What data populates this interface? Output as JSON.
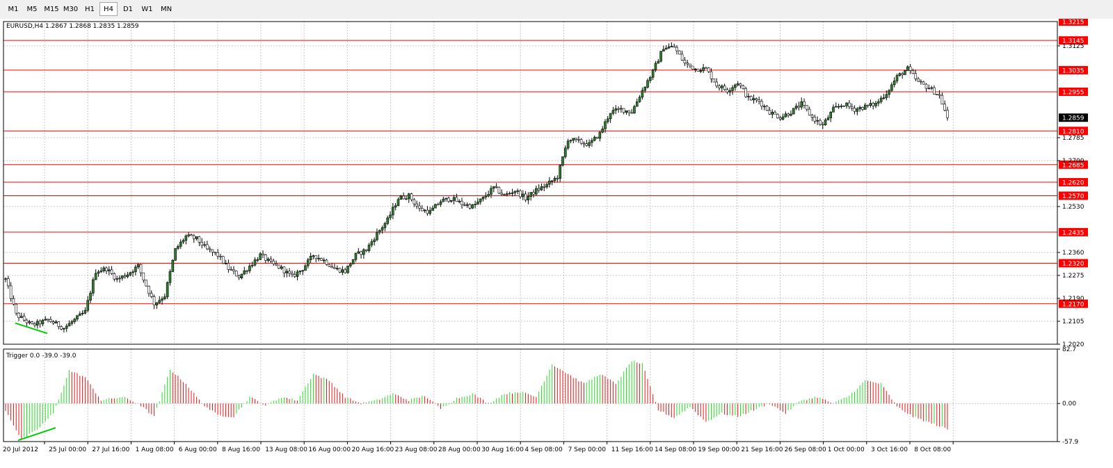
{
  "toolbar": {
    "timeframes": [
      "M1",
      "M5",
      "M15",
      "M30",
      "H1",
      "H4",
      "D1",
      "W1",
      "MN"
    ],
    "active": "H4"
  },
  "symbol_header": "EURUSD,H4  1.2867 1.2868 1.2835 1.2859",
  "current_price_label": "1.2859",
  "indicator_header": "Trigger 0.0 -39.0 -39.0",
  "colors": {
    "background": "#ffffff",
    "grid": "#c8c8c8",
    "level_line": "#ff0000",
    "level_label_bg": "#ff0000",
    "bull_candle": "#2f7d2f",
    "bear_candle": "#000000",
    "hist_positive": "#22dd22",
    "hist_negative": "#ee1111",
    "trend_line": "#00cc00",
    "price_box_bg": "#000000"
  },
  "chart_data": [
    {
      "type": "candlestick",
      "price_axis_ticks": [
        "1.3125",
        "1.2785",
        "1.2700",
        "1.2530",
        "1.2360",
        "1.2275",
        "1.2190",
        "1.2105",
        "1.2020"
      ],
      "ylim": [
        1.202,
        1.3215
      ],
      "resistance_levels": [
        "1.3215",
        "1.3145",
        "1.3035",
        "1.2955",
        "1.2810",
        "1.2685",
        "1.2620",
        "1.2570",
        "1.2435",
        "1.2320",
        "1.2170"
      ],
      "time_labels": [
        "20 Jul 2012",
        "25 Jul 00:00",
        "27 Jul 16:00",
        "1 Aug 08:00",
        "6 Aug 00:00",
        "8 Aug 16:00",
        "13 Aug 08:00",
        "16 Aug 00:00",
        "20 Aug 16:00",
        "23 Aug 08:00",
        "28 Aug 00:00",
        "30 Aug 16:00",
        "4 Sep 08:00",
        "7 Sep 00:00",
        "11 Sep 16:00",
        "14 Sep 08:00",
        "19 Sep 00:00",
        "21 Sep 16:00",
        "26 Sep 08:00",
        "1 Oct 00:00",
        "3 Oct 16:00",
        "8 Oct 08:00"
      ],
      "last_close": 1.2859,
      "path_keypoints": [
        [
          0,
          1.226
        ],
        [
          4,
          1.213
        ],
        [
          10,
          1.209
        ],
        [
          16,
          1.211
        ],
        [
          22,
          1.208
        ],
        [
          26,
          1.211
        ],
        [
          30,
          1.214
        ],
        [
          34,
          1.229
        ],
        [
          38,
          1.23
        ],
        [
          42,
          1.226
        ],
        [
          46,
          1.228
        ],
        [
          50,
          1.231
        ],
        [
          52,
          1.226
        ],
        [
          56,
          1.217
        ],
        [
          60,
          1.22
        ],
        [
          64,
          1.237
        ],
        [
          68,
          1.242
        ],
        [
          72,
          1.241
        ],
        [
          76,
          1.237
        ],
        [
          80,
          1.235
        ],
        [
          84,
          1.23
        ],
        [
          88,
          1.227
        ],
        [
          92,
          1.231
        ],
        [
          96,
          1.235
        ],
        [
          100,
          1.232
        ],
        [
          104,
          1.23
        ],
        [
          108,
          1.227
        ],
        [
          112,
          1.23
        ],
        [
          116,
          1.235
        ],
        [
          120,
          1.233
        ],
        [
          124,
          1.23
        ],
        [
          128,
          1.229
        ],
        [
          132,
          1.235
        ],
        [
          136,
          1.237
        ],
        [
          140,
          1.243
        ],
        [
          144,
          1.248
        ],
        [
          148,
          1.256
        ],
        [
          152,
          1.257
        ],
        [
          156,
          1.252
        ],
        [
          160,
          1.251
        ],
        [
          164,
          1.255
        ],
        [
          168,
          1.256
        ],
        [
          172,
          1.254
        ],
        [
          176,
          1.253
        ],
        [
          180,
          1.256
        ],
        [
          184,
          1.26
        ],
        [
          188,
          1.257
        ],
        [
          192,
          1.259
        ],
        [
          196,
          1.256
        ],
        [
          200,
          1.259
        ],
        [
          204,
          1.261
        ],
        [
          208,
          1.264
        ],
        [
          212,
          1.278
        ],
        [
          216,
          1.277
        ],
        [
          220,
          1.276
        ],
        [
          224,
          1.28
        ],
        [
          228,
          1.288
        ],
        [
          232,
          1.289
        ],
        [
          236,
          1.288
        ],
        [
          240,
          1.296
        ],
        [
          244,
          1.303
        ],
        [
          248,
          1.312
        ],
        [
          252,
          1.312
        ],
        [
          256,
          1.306
        ],
        [
          260,
          1.304
        ],
        [
          264,
          1.304
        ],
        [
          268,
          1.298
        ],
        [
          272,
          1.296
        ],
        [
          276,
          1.299
        ],
        [
          280,
          1.293
        ],
        [
          284,
          1.292
        ],
        [
          288,
          1.288
        ],
        [
          292,
          1.286
        ],
        [
          296,
          1.288
        ],
        [
          300,
          1.291
        ],
        [
          304,
          1.286
        ],
        [
          308,
          1.283
        ],
        [
          312,
          1.289
        ],
        [
          316,
          1.291
        ],
        [
          320,
          1.289
        ],
        [
          324,
          1.29
        ],
        [
          328,
          1.291
        ],
        [
          332,
          1.295
        ],
        [
          336,
          1.301
        ],
        [
          340,
          1.304
        ],
        [
          344,
          1.299
        ],
        [
          348,
          1.297
        ],
        [
          352,
          1.294
        ],
        [
          355,
          1.2859
        ]
      ]
    },
    {
      "type": "histogram",
      "title": "Trigger",
      "ylim": [
        -57.9,
        82.7
      ],
      "y_axis_ticks": [
        "82.7",
        "0.00",
        "-57.9"
      ],
      "keypoints": [
        [
          0,
          -10
        ],
        [
          6,
          -55
        ],
        [
          12,
          -40
        ],
        [
          18,
          -15
        ],
        [
          24,
          50
        ],
        [
          30,
          40
        ],
        [
          36,
          5
        ],
        [
          44,
          10
        ],
        [
          50,
          0
        ],
        [
          56,
          -20
        ],
        [
          62,
          52
        ],
        [
          68,
          30
        ],
        [
          74,
          0
        ],
        [
          80,
          -18
        ],
        [
          86,
          -20
        ],
        [
          92,
          10
        ],
        [
          98,
          -3
        ],
        [
          104,
          10
        ],
        [
          110,
          5
        ],
        [
          116,
          45
        ],
        [
          122,
          35
        ],
        [
          128,
          10
        ],
        [
          134,
          0
        ],
        [
          140,
          5
        ],
        [
          146,
          15
        ],
        [
          152,
          5
        ],
        [
          158,
          12
        ],
        [
          164,
          -8
        ],
        [
          170,
          8
        ],
        [
          176,
          15
        ],
        [
          182,
          0
        ],
        [
          188,
          15
        ],
        [
          194,
          18
        ],
        [
          200,
          10
        ],
        [
          206,
          60
        ],
        [
          212,
          45
        ],
        [
          218,
          30
        ],
        [
          224,
          45
        ],
        [
          230,
          30
        ],
        [
          236,
          65
        ],
        [
          240,
          60
        ],
        [
          246,
          -10
        ],
        [
          252,
          -22
        ],
        [
          258,
          -5
        ],
        [
          264,
          -28
        ],
        [
          270,
          -15
        ],
        [
          276,
          -20
        ],
        [
          282,
          -10
        ],
        [
          288,
          0
        ],
        [
          294,
          -15
        ],
        [
          300,
          5
        ],
        [
          306,
          10
        ],
        [
          312,
          0
        ],
        [
          318,
          12
        ],
        [
          324,
          35
        ],
        [
          330,
          30
        ],
        [
          336,
          -5
        ],
        [
          342,
          -20
        ],
        [
          355,
          -39
        ]
      ]
    }
  ]
}
